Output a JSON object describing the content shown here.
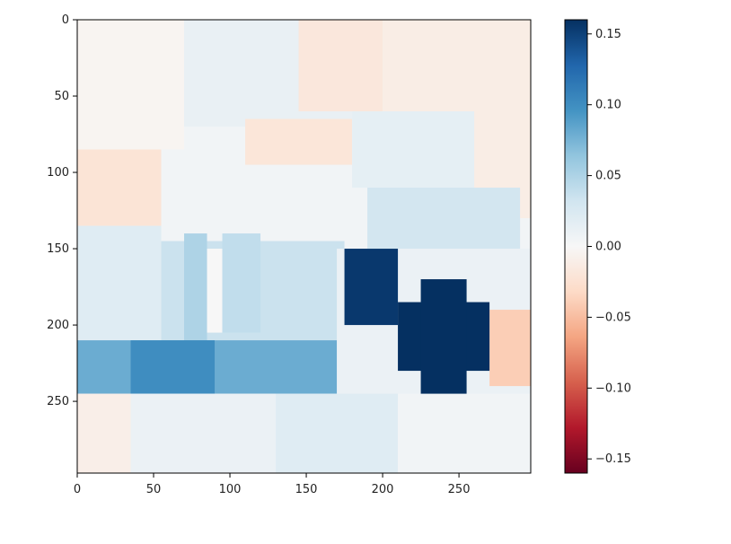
{
  "chart_data": {
    "type": "heatmap",
    "title": "",
    "xlabel": "",
    "ylabel": "",
    "xlim": [
      0,
      297
    ],
    "ylim": [
      297,
      0
    ],
    "x_ticks": [
      0,
      50,
      100,
      150,
      200,
      250
    ],
    "y_ticks": [
      0,
      50,
      100,
      150,
      200,
      250
    ],
    "x_tick_labels": [
      "0",
      "50",
      "100",
      "150",
      "200",
      "250"
    ],
    "y_tick_labels": [
      "0",
      "50",
      "100",
      "150",
      "200",
      "250"
    ],
    "colormap": "RdBu",
    "color_range": [
      -0.16,
      0.16
    ],
    "colorbar_ticks": [
      0.15,
      0.1,
      0.05,
      0.0,
      -0.05,
      -0.1,
      -0.15
    ],
    "colorbar_tick_labels": [
      "0.15",
      "0.10",
      "0.05",
      "0.00",
      "−0.05",
      "−0.10",
      "−0.15"
    ],
    "grid": false,
    "regions": [
      {
        "x": [
          0,
          297
        ],
        "y": [
          0,
          297
        ],
        "value": 0.005
      },
      {
        "x": [
          0,
          70
        ],
        "y": [
          0,
          85
        ],
        "value": -0.004
      },
      {
        "x": [
          70,
          180
        ],
        "y": [
          0,
          70
        ],
        "value": 0.012
      },
      {
        "x": [
          145,
          200
        ],
        "y": [
          0,
          60
        ],
        "value": -0.018
      },
      {
        "x": [
          200,
          297
        ],
        "y": [
          0,
          130
        ],
        "value": -0.012
      },
      {
        "x": [
          0,
          55
        ],
        "y": [
          85,
          135
        ],
        "value": -0.022
      },
      {
        "x": [
          110,
          180
        ],
        "y": [
          65,
          95
        ],
        "value": -0.02
      },
      {
        "x": [
          180,
          260
        ],
        "y": [
          60,
          110
        ],
        "value": 0.015
      },
      {
        "x": [
          190,
          290
        ],
        "y": [
          110,
          160
        ],
        "value": 0.03
      },
      {
        "x": [
          0,
          55
        ],
        "y": [
          135,
          210
        ],
        "value": 0.02
      },
      {
        "x": [
          55,
          175
        ],
        "y": [
          145,
          210
        ],
        "value": 0.035
      },
      {
        "x": [
          70,
          85
        ],
        "y": [
          140,
          215
        ],
        "value": 0.05
      },
      {
        "x": [
          85,
          95
        ],
        "y": [
          150,
          205
        ],
        "value": 0.0
      },
      {
        "x": [
          95,
          120
        ],
        "y": [
          140,
          205
        ],
        "value": 0.04
      },
      {
        "x": [
          170,
          297
        ],
        "y": [
          150,
          250
        ],
        "value": 0.01
      },
      {
        "x": [
          0,
          170
        ],
        "y": [
          210,
          245
        ],
        "value": 0.08
      },
      {
        "x": [
          35,
          90
        ],
        "y": [
          210,
          245
        ],
        "value": 0.1
      },
      {
        "x": [
          0,
          35
        ],
        "y": [
          245,
          297
        ],
        "value": -0.01
      },
      {
        "x": [
          35,
          130
        ],
        "y": [
          245,
          297
        ],
        "value": 0.01
      },
      {
        "x": [
          130,
          210
        ],
        "y": [
          245,
          297
        ],
        "value": 0.02
      },
      {
        "x": [
          210,
          297
        ],
        "y": [
          245,
          297
        ],
        "value": 0.005
      },
      {
        "x": [
          270,
          297
        ],
        "y": [
          190,
          240
        ],
        "value": -0.04
      },
      {
        "x": [
          175,
          210
        ],
        "y": [
          150,
          200
        ],
        "value": 0.155
      },
      {
        "x": [
          210,
          270
        ],
        "y": [
          185,
          230
        ],
        "value": 0.16
      },
      {
        "x": [
          225,
          255
        ],
        "y": [
          170,
          245
        ],
        "value": 0.16
      }
    ]
  }
}
